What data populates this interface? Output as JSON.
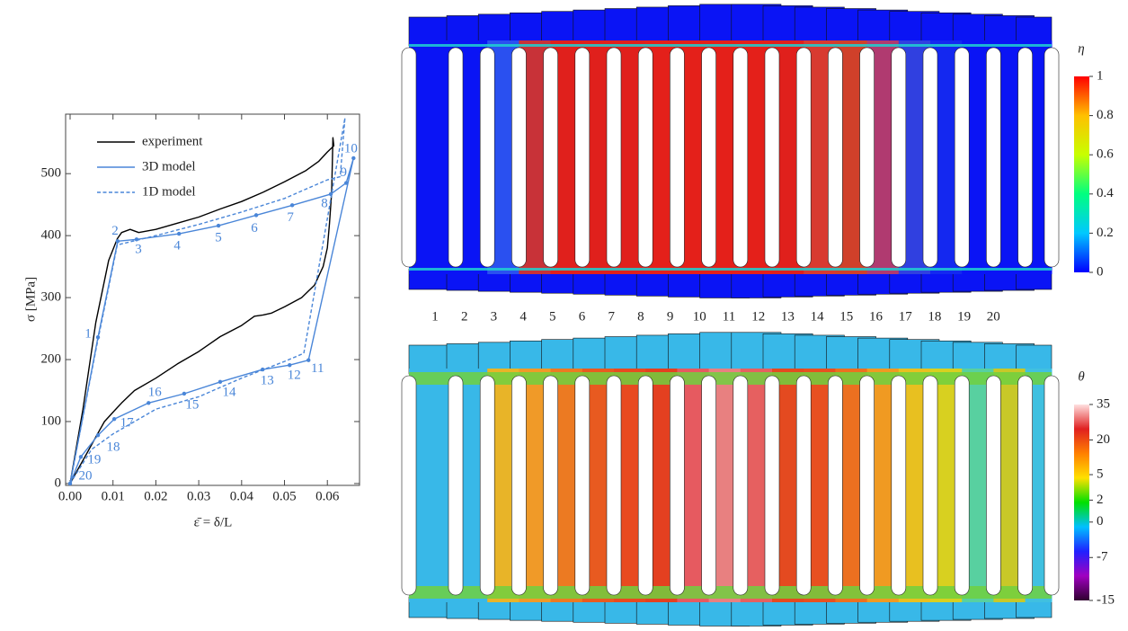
{
  "chart_data": {
    "type": "line",
    "xlabel": "ε̄ = δ/L",
    "ylabel": "σ [MPa]",
    "xlim": [
      -0.00105,
      0.0675
    ],
    "ylim": [
      -3,
      596
    ],
    "xticks": [
      {
        "value": 0,
        "label": "0.00"
      },
      0.01,
      0.02,
      0.03,
      0.04,
      0.05,
      0.06
    ],
    "yticks": [
      0,
      100,
      200,
      300,
      400,
      500
    ],
    "legend": "upper left",
    "series": [
      {
        "name": "experiment",
        "color": "#000000",
        "style": "solid",
        "x": [
          0,
          0.003,
          0.006,
          0.009,
          0.011,
          0.012,
          0.014,
          0.016,
          0.02,
          0.025,
          0.03,
          0.035,
          0.04,
          0.045,
          0.05,
          0.055,
          0.058,
          0.06,
          0.0615,
          0.0613,
          0.061,
          0.0605,
          0.06,
          0.059,
          0.057,
          0.054,
          0.05,
          0.047,
          0.045,
          0.043,
          0.04,
          0.035,
          0.03,
          0.025,
          0.02,
          0.015,
          0.012,
          0.01,
          0.008,
          0.006,
          0.004,
          0.002,
          0
        ],
        "values": [
          0,
          120,
          260,
          360,
          395,
          405,
          410,
          405,
          410,
          420,
          430,
          443,
          455,
          470,
          487,
          505,
          520,
          535,
          545,
          558,
          470,
          420,
          380,
          350,
          320,
          300,
          285,
          275,
          272,
          270,
          255,
          237,
          213,
          193,
          170,
          150,
          130,
          115,
          100,
          75,
          50,
          25,
          0
        ]
      },
      {
        "name": "3D model",
        "color": "#4a86d8",
        "style": "solid",
        "x": [
          0,
          0.0065,
          0.0111,
          0.0155,
          0.0254,
          0.0346,
          0.0434,
          0.0518,
          0.0608,
          0.0644,
          0.0661,
          0.0556,
          0.0512,
          0.0449,
          0.035,
          0.0266,
          0.0183,
          0.0103,
          0.0065,
          0.0025,
          0
        ],
        "values": [
          0,
          236,
          391,
          394,
          403,
          416,
          433,
          449,
          467,
          485,
          525,
          199,
          191,
          184,
          164,
          145,
          130,
          104,
          78,
          43,
          0
        ],
        "points": [
          {
            "label": "1",
            "x": 0.0065,
            "y": 236
          },
          {
            "label": "2",
            "x": 0.0111,
            "y": 391
          },
          {
            "label": "3",
            "x": 0.0155,
            "y": 394
          },
          {
            "label": "4",
            "x": 0.0254,
            "y": 403
          },
          {
            "label": "5",
            "x": 0.0346,
            "y": 416
          },
          {
            "label": "6",
            "x": 0.0434,
            "y": 433
          },
          {
            "label": "7",
            "x": 0.0518,
            "y": 449
          },
          {
            "label": "8",
            "x": 0.0608,
            "y": 467
          },
          {
            "label": "9",
            "x": 0.0644,
            "y": 485
          },
          {
            "label": "10",
            "x": 0.0661,
            "y": 525
          },
          {
            "label": "11",
            "x": 0.0556,
            "y": 199
          },
          {
            "label": "12",
            "x": 0.0512,
            "y": 191
          },
          {
            "label": "13",
            "x": 0.0449,
            "y": 184
          },
          {
            "label": "14",
            "x": 0.035,
            "y": 164
          },
          {
            "label": "15",
            "x": 0.0266,
            "y": 145
          },
          {
            "label": "16",
            "x": 0.0183,
            "y": 130
          },
          {
            "label": "17",
            "x": 0.0103,
            "y": 104
          },
          {
            "label": "18",
            "x": 0.0065,
            "y": 78
          },
          {
            "label": "19",
            "x": 0.0025,
            "y": 43
          },
          {
            "label": "20",
            "x": 0,
            "y": 0
          }
        ]
      },
      {
        "name": "1D model",
        "color": "#4a86d8",
        "style": "dashed",
        "x": [
          0,
          0.006,
          0.011,
          0.02,
          0.03,
          0.04,
          0.05,
          0.055,
          0.06,
          0.063,
          0.0641,
          0.0545,
          0.05,
          0.04,
          0.03,
          0.02,
          0.015,
          0.01,
          0.005,
          0
        ],
        "values": [
          0,
          215,
          385,
          400,
          418,
          438,
          460,
          475,
          490,
          495,
          590,
          210,
          197,
          170,
          140,
          120,
          100,
          80,
          55,
          0
        ]
      }
    ]
  },
  "fields": {
    "specimens": [
      "1",
      "2",
      "3",
      "4",
      "5",
      "6",
      "7",
      "8",
      "9",
      "10",
      "11",
      "12",
      "13",
      "14",
      "15",
      "16",
      "17",
      "18",
      "19",
      "20"
    ],
    "panels": [
      {
        "symbol": "η",
        "ticks": [
          0,
          0.2,
          0.4,
          0.6,
          0.8,
          1
        ],
        "colors": [
          "#0000ff",
          "#00c8ff",
          "#00ff80",
          "#c8ff00",
          "#ffc000",
          "#ff0000"
        ]
      },
      {
        "symbol": "θ",
        "ticks": [
          -15,
          -7,
          0,
          2,
          5,
          20,
          35
        ],
        "colors": [
          "#300030",
          "#a000c0",
          "#2020ff",
          "#00c0ff",
          "#00e000",
          "#ffe000",
          "#ff8000",
          "#e02020",
          "#ffe0e0"
        ]
      }
    ]
  }
}
